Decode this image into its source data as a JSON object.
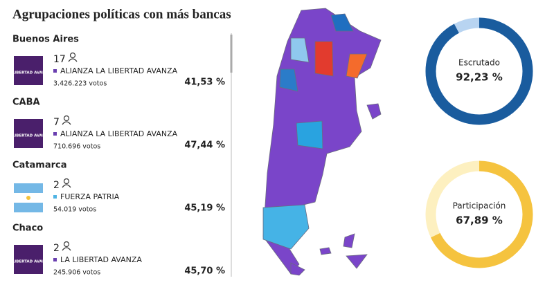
{
  "title": "Agrupaciones políticas con más bancas",
  "provinces": [
    {
      "name": "Buenos Aires",
      "logo_text": "LA LIBERTAD AVANZA",
      "seats": 17,
      "party": "ALIANZA LA LIBERTAD AVANZA",
      "party_color": "#6a3fb0",
      "votes": "3.426.223 votos",
      "percent": "41,53 %"
    },
    {
      "name": "CABA",
      "logo_text": "LA LIBERTAD AVANZA",
      "seats": 7,
      "party": "ALIANZA LA LIBERTAD AVANZA",
      "party_color": "#6a3fb0",
      "votes": "710.696 votos",
      "percent": "47,44 %"
    },
    {
      "name": "Catamarca",
      "seats": 2,
      "party": "FUERZA PATRIA",
      "party_color": "#4fb3e3",
      "votes": "54.019 votos",
      "percent": "45,19 %"
    },
    {
      "name": "Chaco",
      "logo_text": "LA LIBERTAD AVANZA",
      "seats": 2,
      "party": "LA LIBERTAD AVANZA",
      "party_color": "#6a3fb0",
      "votes": "245.906 votos",
      "percent": "45,70 %"
    }
  ],
  "gauges": [
    {
      "label": "Escrutado",
      "value": 92.23,
      "value_label": "92,23 %",
      "color": "#1a5c9e",
      "rest_color": "#b8d4f1"
    },
    {
      "label": "Participación",
      "value": 67.89,
      "value_label": "67,89 %",
      "color": "#f5c33f",
      "rest_color": "#fdf0c0"
    }
  ]
}
